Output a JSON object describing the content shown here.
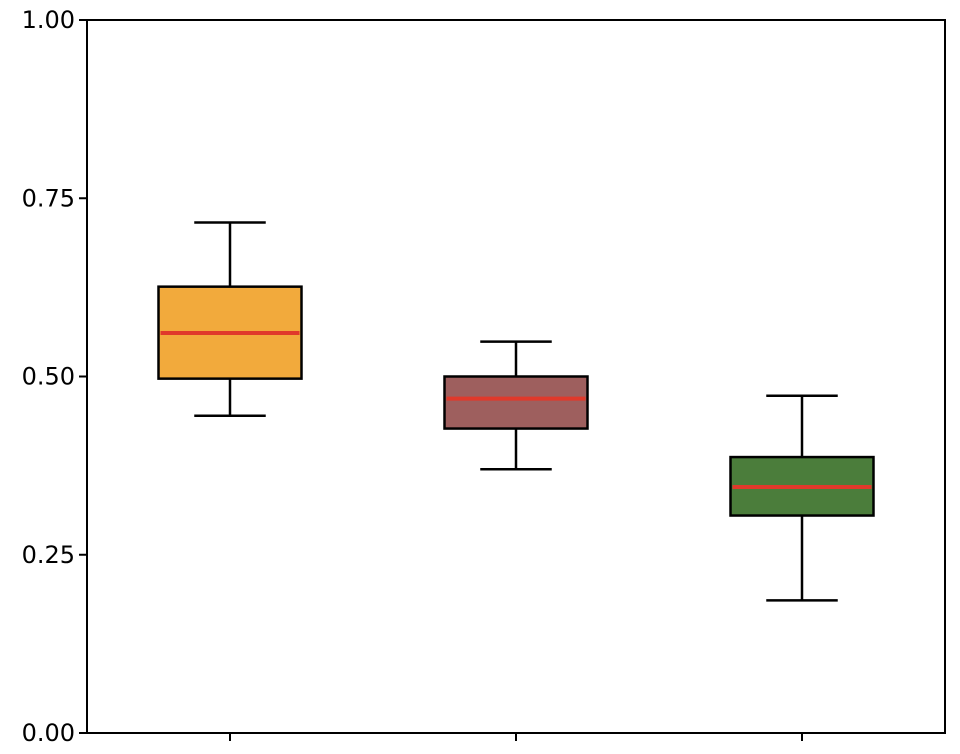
{
  "chart_data": {
    "type": "box",
    "title": "",
    "xlabel": "",
    "ylabel": "",
    "ylim": [
      0,
      1
    ],
    "yticks": [
      "0.00",
      "0.25",
      "0.50",
      "0.75",
      "1.00"
    ],
    "grid": false,
    "categories": [
      "",
      "",
      ""
    ],
    "boxes": [
      {
        "whisker_low": 0.445,
        "q1": 0.497,
        "median": 0.561,
        "q3": 0.626,
        "whisker_high": 0.716,
        "color": "#F2AA3C"
      },
      {
        "whisker_low": 0.37,
        "q1": 0.427,
        "median": 0.469,
        "q3": 0.5,
        "whisker_high": 0.549,
        "color": "#9E5F5E"
      },
      {
        "whisker_low": 0.186,
        "q1": 0.305,
        "median": 0.345,
        "q3": 0.387,
        "whisker_high": 0.473,
        "color": "#4B7D3B"
      }
    ],
    "median_color": "#E0392B"
  }
}
